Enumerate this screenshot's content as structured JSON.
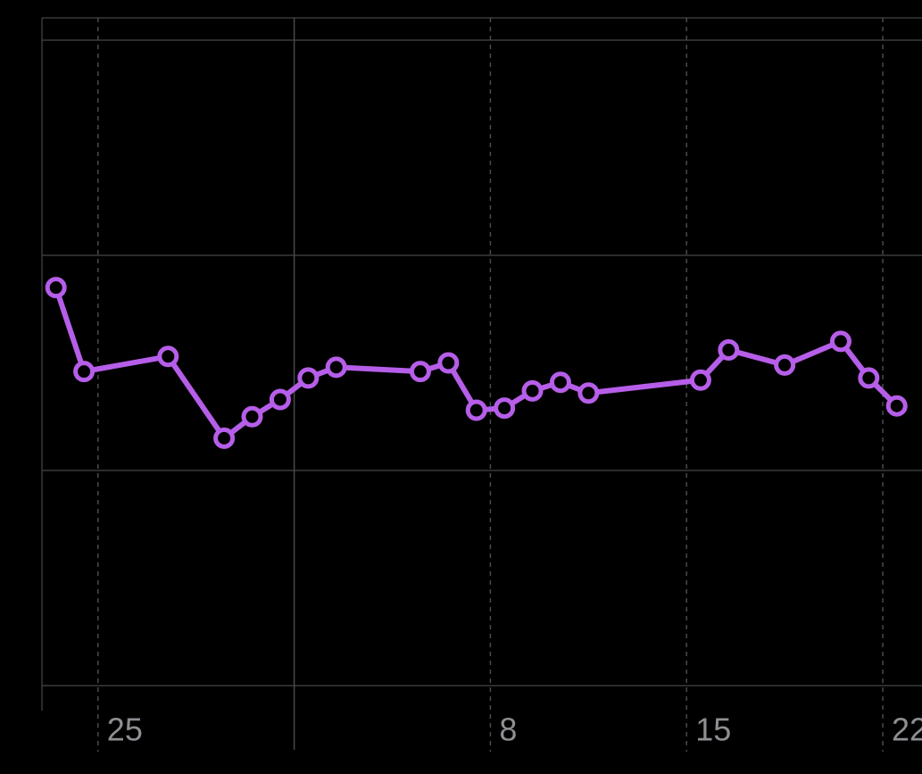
{
  "chart_data": {
    "type": "line",
    "x": [
      23.5,
      24.5,
      27.5,
      29.5,
      30.5,
      31.5,
      32.5,
      33.5,
      36.5,
      37.5,
      38.5,
      39.5,
      40.5,
      41.5,
      42.5,
      46.5,
      47.5,
      49.5,
      51.5,
      52.5,
      53.5
    ],
    "series": [
      {
        "color": "#b65ee9",
        "values": [
          1.85,
          1.46,
          1.53,
          1.15,
          1.25,
          1.33,
          1.43,
          1.48,
          1.46,
          1.5,
          1.28,
          1.29,
          1.37,
          1.41,
          1.36,
          1.42,
          1.56,
          1.49,
          1.6,
          1.43,
          1.3
        ]
      }
    ],
    "xlim": [
      23,
      54.4
    ],
    "xticks": [
      25,
      {
        "value": 32,
        "label": null
      },
      {
        "value": 39,
        "label": "8"
      },
      {
        "value": 46,
        "label": "15"
      },
      {
        "value": 53,
        "label": "22"
      }
    ],
    "ylim": [
      0,
      3
    ],
    "yticks": [
      0,
      1,
      2,
      3
    ],
    "grid": true
  }
}
